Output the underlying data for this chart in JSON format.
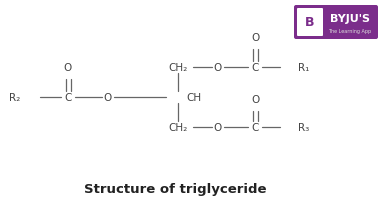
{
  "background_color": "#ffffff",
  "title": "Structure of triglyceride",
  "title_fontsize": 9.5,
  "text_color": "#444444",
  "bond_color": "#666666",
  "logo_bg": "#7b2d8b",
  "logo_text": "BYJU'S",
  "logo_sub": "The Learning App",
  "fs": 7.5,
  "lw": 0.9
}
